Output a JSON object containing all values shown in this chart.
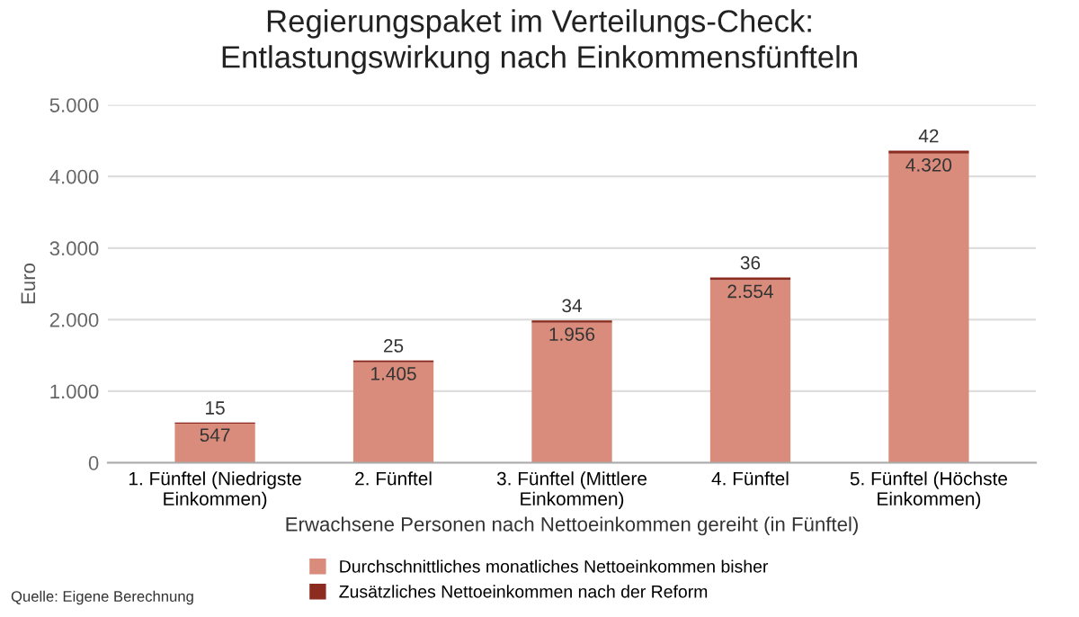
{
  "chart_data": {
    "type": "bar",
    "stacked": true,
    "title": "Regierungspaket im Verteilungs-Check:\nEntlastungswirkung nach Einkommensfünfteln",
    "xlabel": "Erwachsene Personen nach Nettoeinkommen gereiht (in Fünftel)",
    "ylabel": "Euro",
    "categories": [
      "1. Fünftel (Niedrigste\nEinkommen)",
      "2. Fünftel",
      "3. Fünftel (Mittlere\nEinkommen)",
      "4. Fünftel",
      "5. Fünftel (Höchste\nEinkommen)"
    ],
    "series": [
      {
        "name": "Durchschnittliches monatliches Nettoeinkommen bisher",
        "color": "#d98c7b",
        "values": [
          547,
          1405,
          1956,
          2554,
          4320
        ],
        "value_labels": [
          "547",
          "1.405",
          "1.956",
          "2.554",
          "4.320"
        ]
      },
      {
        "name": "Zusätzliches Nettoeinkommen nach der Reform",
        "color": "#8c2b1f",
        "values": [
          15,
          25,
          34,
          36,
          42
        ],
        "value_labels": [
          "15",
          "25",
          "34",
          "36",
          "42"
        ]
      }
    ],
    "ylim": [
      0,
      5000
    ],
    "yticks": [
      0,
      {
        "value": 1000,
        "label": "1.000"
      },
      {
        "value": 2000,
        "label": "2.000"
      },
      {
        "value": 3000,
        "label": "3.000"
      },
      {
        "value": 4000,
        "label": "4.000"
      },
      {
        "value": 5000,
        "label": "5.000"
      }
    ],
    "grid": "y",
    "legend": "bottom",
    "annotations": [
      "Quelle: Eigene Berechnung"
    ]
  }
}
